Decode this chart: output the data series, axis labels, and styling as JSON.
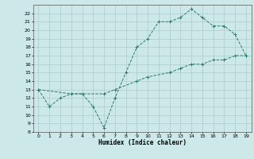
{
  "xlabel": "Humidex (Indice chaleur)",
  "bg_color": "#cce8e8",
  "grid_color": "#aacccc",
  "line_color": "#2d7a6e",
  "ylim": [
    8,
    23
  ],
  "xlim": [
    -0.5,
    19.5
  ],
  "yticks": [
    8,
    9,
    10,
    11,
    12,
    13,
    14,
    15,
    16,
    17,
    18,
    19,
    20,
    21,
    22
  ],
  "xticks": [
    0,
    1,
    2,
    3,
    4,
    5,
    6,
    7,
    8,
    9,
    10,
    11,
    12,
    13,
    14,
    15,
    16,
    17,
    18,
    19
  ],
  "curve1_x": [
    0,
    1,
    2,
    3,
    4,
    5,
    6,
    7,
    8,
    9,
    10,
    11,
    12,
    13,
    14,
    15,
    16,
    17,
    18,
    19
  ],
  "curve1_y": [
    13,
    11,
    12,
    12.5,
    12.5,
    11,
    8.5,
    12,
    15,
    18,
    19,
    21,
    21,
    21.5,
    22.5,
    21.5,
    20.5,
    20.5,
    19.5,
    17
  ],
  "curve2_x": [
    0,
    3,
    6,
    7,
    9,
    10,
    12,
    13,
    14,
    15,
    16,
    17,
    18,
    19
  ],
  "curve2_y": [
    13,
    12.5,
    12.5,
    13,
    14,
    14.5,
    15,
    15.5,
    16,
    16,
    16.5,
    16.5,
    17,
    17
  ]
}
